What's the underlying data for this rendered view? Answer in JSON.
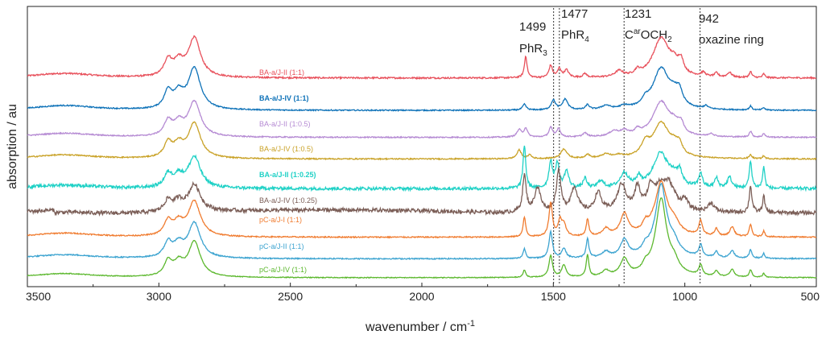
{
  "chart_data": {
    "type": "line",
    "xlabel": "wavenumber / cm",
    "xlabel_sup": "-1",
    "ylabel": "absorption / au",
    "xlim": [
      3500,
      500
    ],
    "x_ticks": [
      3500,
      3000,
      2500,
      2000,
      1500,
      1000,
      500
    ],
    "reference_lines": [
      {
        "x": 1499,
        "label": "1499",
        "label2": "PhR",
        "label2_sub": "3"
      },
      {
        "x": 1477,
        "label": "1477",
        "label2": "PhR",
        "label2_sub": "4"
      },
      {
        "x": 1231,
        "label": "1231",
        "label2_main": "C",
        "label2_sup": "ar",
        "label2_tail": "OCH",
        "label2_sub": "2"
      },
      {
        "x": 942,
        "label": "942",
        "label2": "oxazine ring"
      }
    ],
    "series": [
      {
        "name": "BA-a/J-II (1:1)",
        "color": "#e8505b",
        "baseline": 0.74,
        "noise": 0.004
      },
      {
        "name": "BA-a/J-IV (1:1)",
        "color": "#0e72b8",
        "baseline": 0.62,
        "noise": 0.003
      },
      {
        "name": "BA-a/J-II (1:0.5)",
        "color": "#b58ad3",
        "baseline": 0.52,
        "noise": 0.003
      },
      {
        "name": "BA-a/J-IV (1:0.5)",
        "color": "#c9a227",
        "baseline": 0.44,
        "noise": 0.003
      },
      {
        "name": "BA-a/J-II (1:0.25)",
        "color": "#1fd1c6",
        "baseline": 0.33,
        "noise": 0.008
      },
      {
        "name": "BA-a/J-IV (1:0.25)",
        "color": "#7b5e57",
        "baseline": 0.24,
        "noise": 0.01
      },
      {
        "name": "pC-a/J-I (1:1)",
        "color": "#f07c30",
        "baseline": 0.15,
        "noise": 0.003
      },
      {
        "name": "pC-a/J-II (1:1)",
        "color": "#3ba3d0",
        "baseline": 0.07,
        "noise": 0.003
      },
      {
        "name": "pC-a/J-IV (1:1)",
        "color": "#5cb82e",
        "baseline": 0.0,
        "noise": 0.002
      }
    ]
  }
}
